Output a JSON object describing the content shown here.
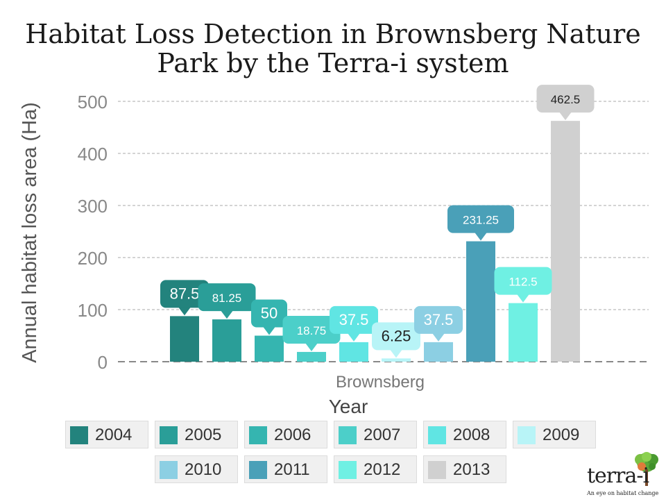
{
  "title_lines": [
    "Habitat Loss Detection in Brownsberg Nature",
    "Park   by the Terra-i system"
  ],
  "chart_data": {
    "type": "bar",
    "title": "Habitat Loss Detection in Brownsberg Nature Park   by the Terra-i system",
    "xlabel": "Year",
    "ylabel": "Annual habitat loss area (Ha)",
    "category": "Brownsberg",
    "ylim": [
      0,
      500
    ],
    "yticks": [
      0,
      100,
      200,
      300,
      400,
      500
    ],
    "grid": true,
    "legend_position": "bottom",
    "series": [
      {
        "name": "2004",
        "value": 87.5,
        "label": "87.5",
        "color": "#23837d"
      },
      {
        "name": "2005",
        "value": 81.25,
        "label": "81.25",
        "color": "#2a9e98"
      },
      {
        "name": "2006",
        "value": 50,
        "label": "50",
        "color": "#35b5b0"
      },
      {
        "name": "2007",
        "value": 18.75,
        "label": "18.75",
        "color": "#4ccfc9"
      },
      {
        "name": "2008",
        "value": 37.5,
        "label": "37.5",
        "color": "#60e5e3"
      },
      {
        "name": "2009",
        "value": 6.25,
        "label": "6.25",
        "color": "#b8f4f7"
      },
      {
        "name": "2010",
        "value": 37.5,
        "label": "37.5",
        "color": "#8ccfe3"
      },
      {
        "name": "2011",
        "value": 231.25,
        "label": "231.25",
        "color": "#4aa0b8"
      },
      {
        "name": "2012",
        "value": 112.5,
        "label": "112.5",
        "color": "#6ff0e3"
      },
      {
        "name": "2013",
        "value": 462.5,
        "label": "462.5",
        "color": "#d0d0d0"
      }
    ]
  },
  "logo": {
    "name": "terra-i",
    "tagline": "An eye on habitat change"
  }
}
